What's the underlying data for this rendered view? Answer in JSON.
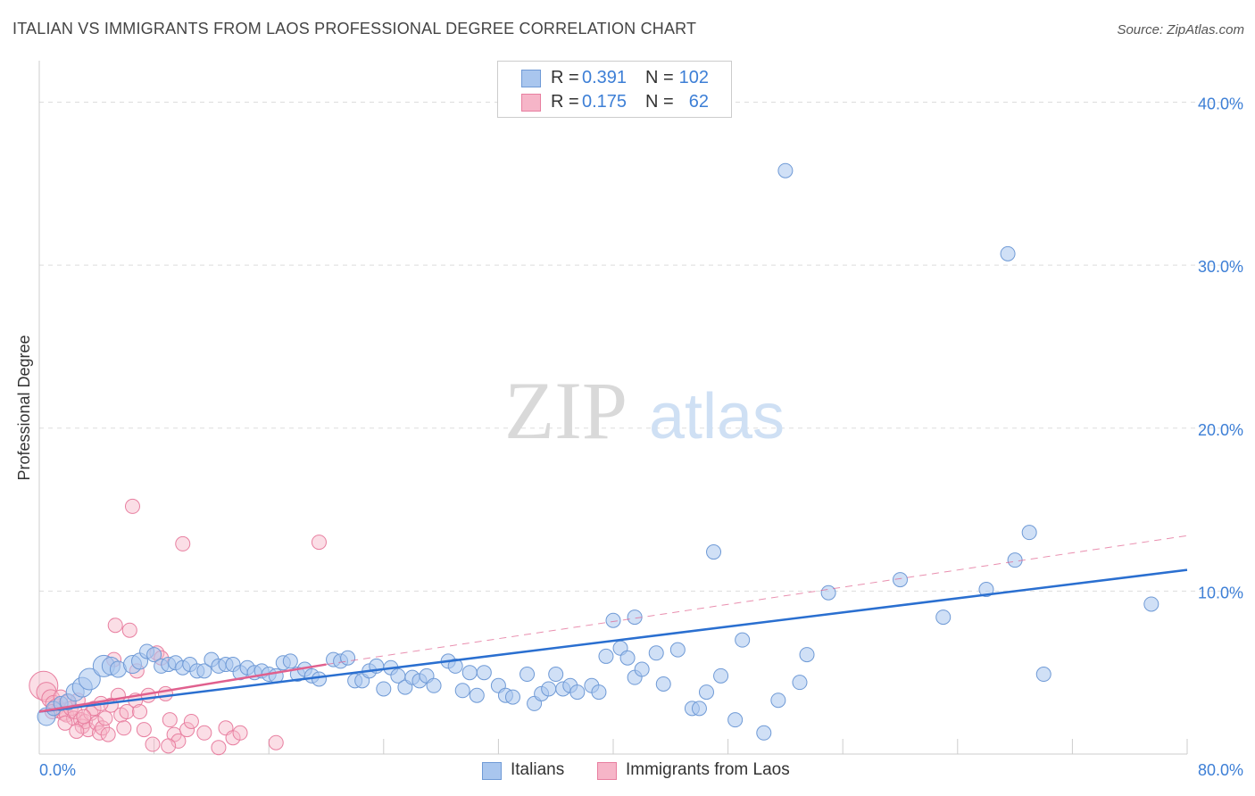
{
  "title": "ITALIAN VS IMMIGRANTS FROM LAOS PROFESSIONAL DEGREE CORRELATION CHART",
  "source": "Source: ZipAtlas.com",
  "watermark": {
    "zip": "ZIP",
    "atlas": "atlas"
  },
  "legend": {
    "r_label": "R =",
    "n_label": "N =",
    "rows": [
      {
        "r_value": "0.391",
        "n_value": "102"
      },
      {
        "r_value": "0.175",
        "n_value": "62"
      }
    ]
  },
  "bottom_legend": [
    "Italians",
    "Immigrants from Laos"
  ],
  "colors": {
    "italians_fill": "#a9c6ee",
    "italians_stroke": "#6f9ad6",
    "italians_line": "#2a6fd0",
    "laos_fill": "#f6b5c8",
    "laos_stroke": "#e87fa0",
    "laos_line": "#e0608e",
    "tick_label": "#3d7fd6",
    "grid": "#dddddd"
  },
  "chart_data": {
    "type": "scatter",
    "title": "ITALIAN VS IMMIGRANTS FROM LAOS PROFESSIONAL DEGREE CORRELATION CHART",
    "xlabel": "",
    "ylabel": "Professional Degree",
    "xlim": [
      0,
      80
    ],
    "ylim": [
      0,
      42
    ],
    "x_tick_labels": [
      "0.0%",
      "80.0%"
    ],
    "y_ticks": [
      10,
      20,
      30,
      40
    ],
    "y_tick_labels": [
      "10.0%",
      "20.0%",
      "30.0%",
      "40.0%"
    ],
    "grid": "horizontal dashed",
    "legend_position": "top-center",
    "series": [
      {
        "name": "Italians",
        "R": 0.391,
        "N": 102,
        "trend": {
          "x": [
            0,
            80
          ],
          "y": [
            2.6,
            11.3
          ],
          "style": "solid"
        },
        "points": [
          [
            0.5,
            2.3,
            10
          ],
          [
            1.0,
            2.8,
            8
          ],
          [
            1.5,
            3.1,
            8
          ],
          [
            2.0,
            3.2,
            9
          ],
          [
            2.5,
            3.8,
            10
          ],
          [
            3.0,
            4.1,
            11
          ],
          [
            3.5,
            4.6,
            12
          ],
          [
            4.5,
            5.4,
            12
          ],
          [
            5.0,
            5.4,
            10
          ],
          [
            5.5,
            5.2,
            9
          ],
          [
            6.5,
            5.5,
            10
          ],
          [
            7.0,
            5.7,
            9
          ],
          [
            7.5,
            6.3,
            8
          ],
          [
            8.0,
            6.1,
            8
          ],
          [
            8.5,
            5.4,
            8
          ],
          [
            9.0,
            5.5,
            8
          ],
          [
            9.5,
            5.6,
            8
          ],
          [
            10.0,
            5.3,
            8
          ],
          [
            10.5,
            5.5,
            8
          ],
          [
            11.0,
            5.1,
            8
          ],
          [
            11.5,
            5.1,
            8
          ],
          [
            12.0,
            5.8,
            8
          ],
          [
            12.5,
            5.4,
            8
          ],
          [
            13.0,
            5.5,
            8
          ],
          [
            13.5,
            5.5,
            8
          ],
          [
            14.0,
            5.0,
            8
          ],
          [
            14.5,
            5.3,
            8
          ],
          [
            15.0,
            5.0,
            8
          ],
          [
            15.5,
            5.1,
            8
          ],
          [
            16.0,
            4.9,
            8
          ],
          [
            16.5,
            4.8,
            8
          ],
          [
            17.0,
            5.6,
            8
          ],
          [
            17.5,
            5.7,
            8
          ],
          [
            18.0,
            4.9,
            8
          ],
          [
            18.5,
            5.2,
            8
          ],
          [
            19.0,
            4.8,
            8
          ],
          [
            19.5,
            4.6,
            8
          ],
          [
            20.5,
            5.8,
            8
          ],
          [
            21.0,
            5.7,
            8
          ],
          [
            21.5,
            5.9,
            8
          ],
          [
            22.0,
            4.5,
            8
          ],
          [
            22.5,
            4.5,
            8
          ],
          [
            23.0,
            5.1,
            8
          ],
          [
            23.5,
            5.4,
            8
          ],
          [
            24.0,
            4.0,
            8
          ],
          [
            24.5,
            5.3,
            8
          ],
          [
            25.0,
            4.8,
            8
          ],
          [
            25.5,
            4.1,
            8
          ],
          [
            26.0,
            4.7,
            8
          ],
          [
            26.5,
            4.5,
            8
          ],
          [
            27.0,
            4.8,
            8
          ],
          [
            27.5,
            4.2,
            8
          ],
          [
            28.5,
            5.7,
            8
          ],
          [
            29.0,
            5.4,
            8
          ],
          [
            29.5,
            3.9,
            8
          ],
          [
            30.0,
            5.0,
            8
          ],
          [
            30.5,
            3.6,
            8
          ],
          [
            31.0,
            5.0,
            8
          ],
          [
            32.0,
            4.2,
            8
          ],
          [
            32.5,
            3.6,
            8
          ],
          [
            33.0,
            3.5,
            8
          ],
          [
            34.0,
            4.9,
            8
          ],
          [
            34.5,
            3.1,
            8
          ],
          [
            35.0,
            3.7,
            8
          ],
          [
            35.5,
            4.0,
            8
          ],
          [
            36.0,
            4.9,
            8
          ],
          [
            36.5,
            4.0,
            8
          ],
          [
            37.0,
            4.2,
            8
          ],
          [
            37.5,
            3.8,
            8
          ],
          [
            38.5,
            4.2,
            8
          ],
          [
            39.0,
            3.8,
            8
          ],
          [
            39.5,
            6.0,
            8
          ],
          [
            40.5,
            6.5,
            8
          ],
          [
            41.0,
            5.9,
            8
          ],
          [
            41.5,
            4.7,
            8
          ],
          [
            42.0,
            5.2,
            8
          ],
          [
            40.0,
            8.2,
            8
          ],
          [
            41.5,
            8.4,
            8
          ],
          [
            43.0,
            6.2,
            8
          ],
          [
            43.5,
            4.3,
            8
          ],
          [
            44.5,
            6.4,
            8
          ],
          [
            45.5,
            2.8,
            8
          ],
          [
            46.0,
            2.8,
            8
          ],
          [
            46.5,
            3.8,
            8
          ],
          [
            47.0,
            12.4,
            8
          ],
          [
            47.5,
            4.8,
            8
          ],
          [
            48.5,
            2.1,
            8
          ],
          [
            49.0,
            7.0,
            8
          ],
          [
            50.5,
            1.3,
            8
          ],
          [
            51.5,
            3.3,
            8
          ],
          [
            52.0,
            35.8,
            8
          ],
          [
            53.0,
            4.4,
            8
          ],
          [
            53.5,
            6.1,
            8
          ],
          [
            55.0,
            9.9,
            8
          ],
          [
            60.0,
            10.7,
            8
          ],
          [
            63.0,
            8.4,
            8
          ],
          [
            66.0,
            10.1,
            8
          ],
          [
            67.5,
            30.7,
            8
          ],
          [
            68.0,
            11.9,
            8
          ],
          [
            69.0,
            13.6,
            8
          ],
          [
            70.0,
            4.9,
            8
          ],
          [
            77.5,
            9.2,
            8
          ]
        ]
      },
      {
        "name": "Immigrants from Laos",
        "R": 0.175,
        "N": 62,
        "trend": {
          "x": [
            0,
            20
          ],
          "y": [
            2.6,
            5.5
          ],
          "style": "solid"
        },
        "trend_extended": {
          "x": [
            20,
            80
          ],
          "y": [
            5.5,
            13.4
          ],
          "style": "dashed"
        },
        "points": [
          [
            0.3,
            4.2,
            16
          ],
          [
            0.5,
            3.8,
            11
          ],
          [
            0.8,
            3.4,
            10
          ],
          [
            1.0,
            3.1,
            9
          ],
          [
            1.2,
            2.9,
            9
          ],
          [
            1.4,
            2.7,
            9
          ],
          [
            1.5,
            3.5,
            8
          ],
          [
            1.7,
            2.5,
            8
          ],
          [
            1.9,
            2.4,
            8
          ],
          [
            2.0,
            3.2,
            8
          ],
          [
            2.2,
            2.8,
            8
          ],
          [
            2.4,
            2.2,
            8
          ],
          [
            2.5,
            2.6,
            8
          ],
          [
            2.7,
            3.3,
            8
          ],
          [
            2.9,
            2.1,
            8
          ],
          [
            3.0,
            1.7,
            8
          ],
          [
            3.2,
            2.0,
            8
          ],
          [
            3.4,
            1.5,
            8
          ],
          [
            3.6,
            2.5,
            8
          ],
          [
            3.8,
            2.8,
            8
          ],
          [
            4.0,
            1.9,
            8
          ],
          [
            4.2,
            1.3,
            8
          ],
          [
            4.4,
            1.6,
            8
          ],
          [
            4.6,
            2.2,
            8
          ],
          [
            4.8,
            1.2,
            8
          ],
          [
            5.0,
            3.0,
            8
          ],
          [
            5.2,
            5.8,
            8
          ],
          [
            5.3,
            7.9,
            8
          ],
          [
            5.5,
            3.6,
            8
          ],
          [
            5.7,
            2.4,
            8
          ],
          [
            5.9,
            1.6,
            8
          ],
          [
            6.1,
            2.6,
            8
          ],
          [
            6.3,
            7.6,
            8
          ],
          [
            6.5,
            15.2,
            8
          ],
          [
            6.7,
            3.3,
            8
          ],
          [
            7.0,
            2.6,
            8
          ],
          [
            7.3,
            1.5,
            8
          ],
          [
            7.6,
            3.6,
            8
          ],
          [
            7.9,
            0.6,
            8
          ],
          [
            8.2,
            6.2,
            8
          ],
          [
            8.5,
            5.9,
            8
          ],
          [
            8.8,
            3.7,
            8
          ],
          [
            9.1,
            2.1,
            8
          ],
          [
            9.4,
            1.2,
            8
          ],
          [
            9.7,
            0.8,
            8
          ],
          [
            10.0,
            12.9,
            8
          ],
          [
            10.3,
            1.5,
            8
          ],
          [
            10.6,
            2.0,
            8
          ],
          [
            11.5,
            1.3,
            8
          ],
          [
            12.5,
            0.4,
            8
          ],
          [
            13.0,
            1.6,
            8
          ],
          [
            13.5,
            1.0,
            8
          ],
          [
            14.0,
            1.3,
            8
          ],
          [
            19.5,
            13.0,
            8
          ],
          [
            16.5,
            0.7,
            8
          ],
          [
            9.0,
            0.5,
            8
          ],
          [
            4.3,
            3.1,
            8
          ],
          [
            3.1,
            2.3,
            8
          ],
          [
            1.8,
            1.9,
            8
          ],
          [
            2.6,
            1.4,
            8
          ],
          [
            0.9,
            2.6,
            8
          ],
          [
            6.8,
            5.1,
            8
          ]
        ]
      }
    ]
  }
}
